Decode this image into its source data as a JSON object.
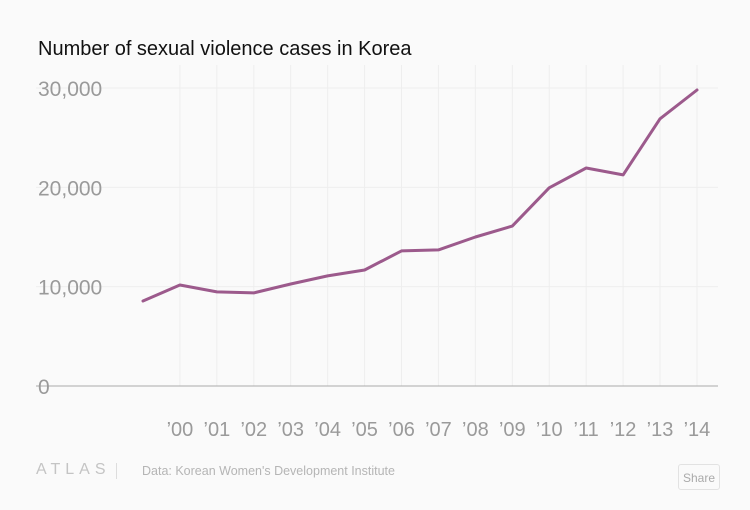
{
  "chart_data": {
    "type": "line",
    "title": "Number of sexual violence cases in Korea",
    "x": [
      1999,
      2000,
      2001,
      2002,
      2003,
      2004,
      2005,
      2006,
      2007,
      2008,
      2009,
      2010,
      2011,
      2012,
      2013,
      2014
    ],
    "x_tick_labels": [
      "’00",
      "’01",
      "’02",
      "’03",
      "’04",
      "’05",
      "’06",
      "’07",
      "’08",
      "’09",
      "’10",
      "’11",
      "’12",
      "’13",
      "’14"
    ],
    "values": [
      8560,
      10170,
      9470,
      9370,
      10270,
      11080,
      11680,
      13600,
      13700,
      15000,
      16100,
      19950,
      21950,
      21250,
      26900,
      29800
    ],
    "y_ticks": [
      0,
      10000,
      20000,
      30000
    ],
    "y_tick_labels": [
      "0",
      "10,000",
      "20,000",
      "30,000"
    ],
    "ylim": [
      0,
      30000
    ],
    "grid": true,
    "line_color": "#9c5a8c"
  },
  "footer": {
    "logo": "ATLAS",
    "source": "Data:  Korean Women's Development Institute",
    "share_label": "Share"
  }
}
